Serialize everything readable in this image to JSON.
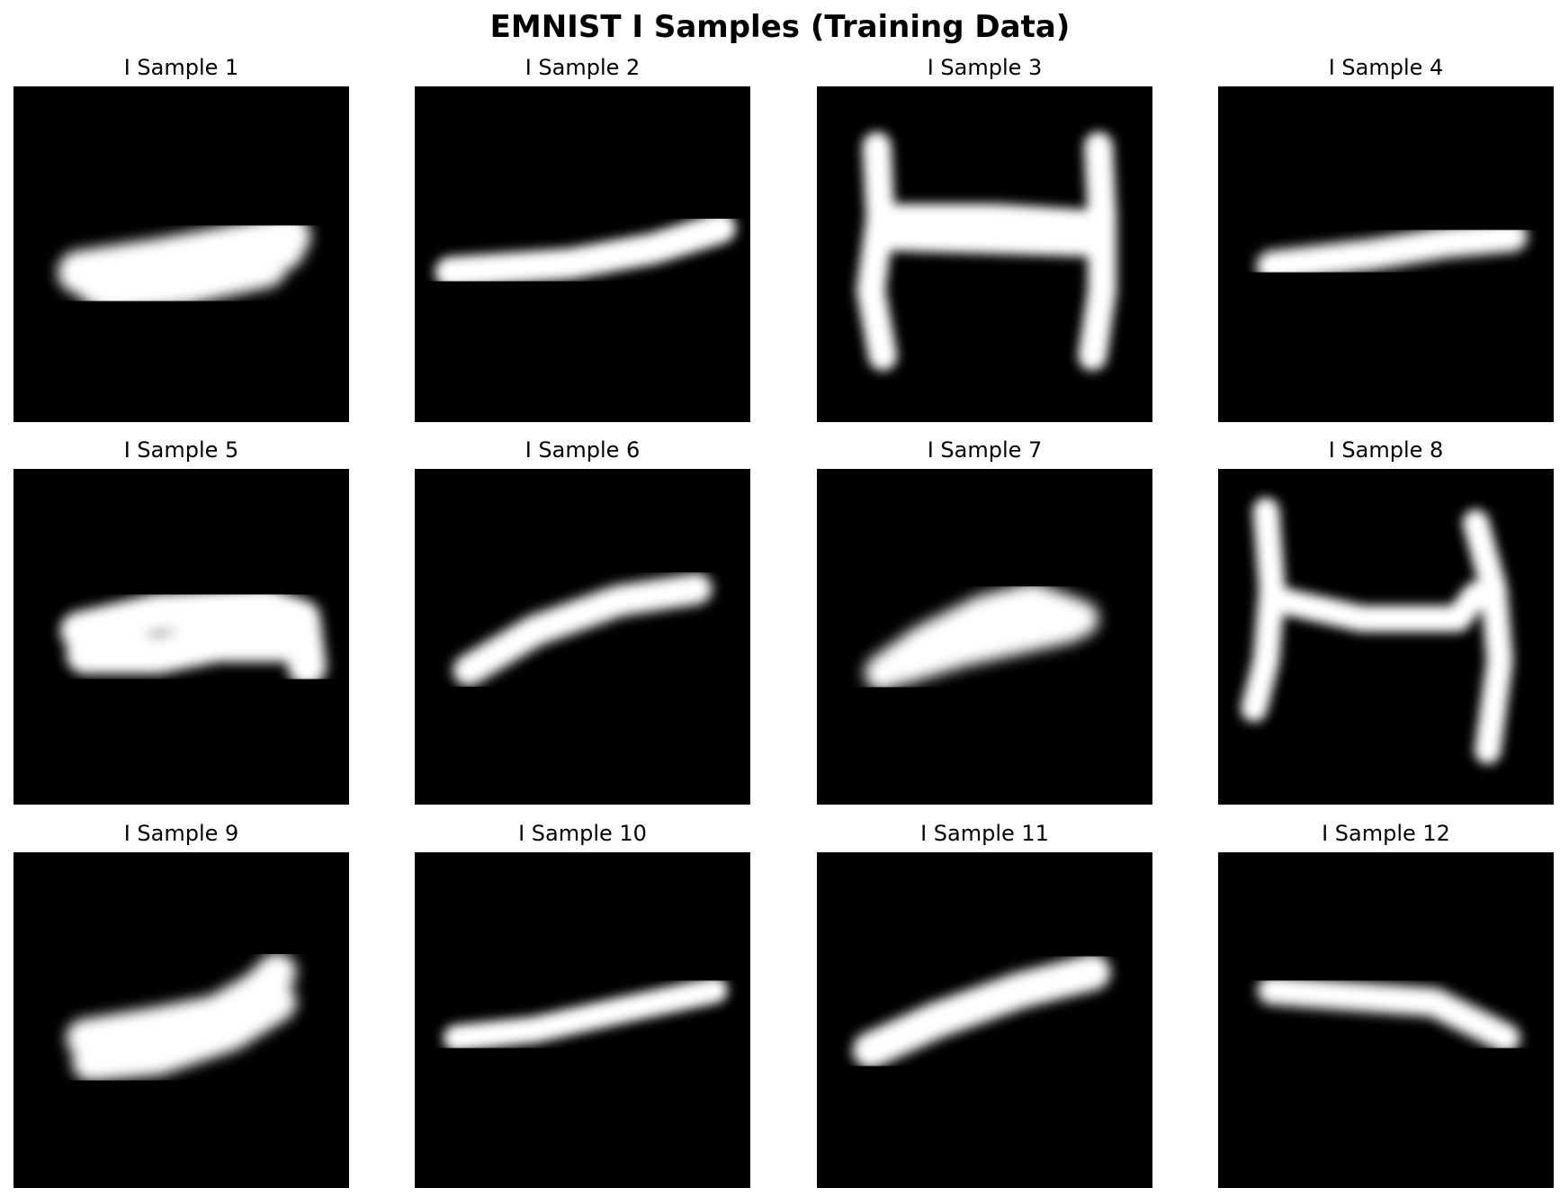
{
  "figure": {
    "title": "EMNIST I Samples (Training Data)"
  },
  "samples": [
    {
      "title": "I Sample 1"
    },
    {
      "title": "I Sample 2"
    },
    {
      "title": "I Sample 3"
    },
    {
      "title": "I Sample 4"
    },
    {
      "title": "I Sample 5"
    },
    {
      "title": "I Sample 6"
    },
    {
      "title": "I Sample 7"
    },
    {
      "title": "I Sample 8"
    },
    {
      "title": "I Sample 9"
    },
    {
      "title": "I Sample 10"
    },
    {
      "title": "I Sample 11"
    },
    {
      "title": "I Sample 12"
    }
  ],
  "colors": {
    "background": "#000000",
    "stroke": "#ffffff"
  }
}
